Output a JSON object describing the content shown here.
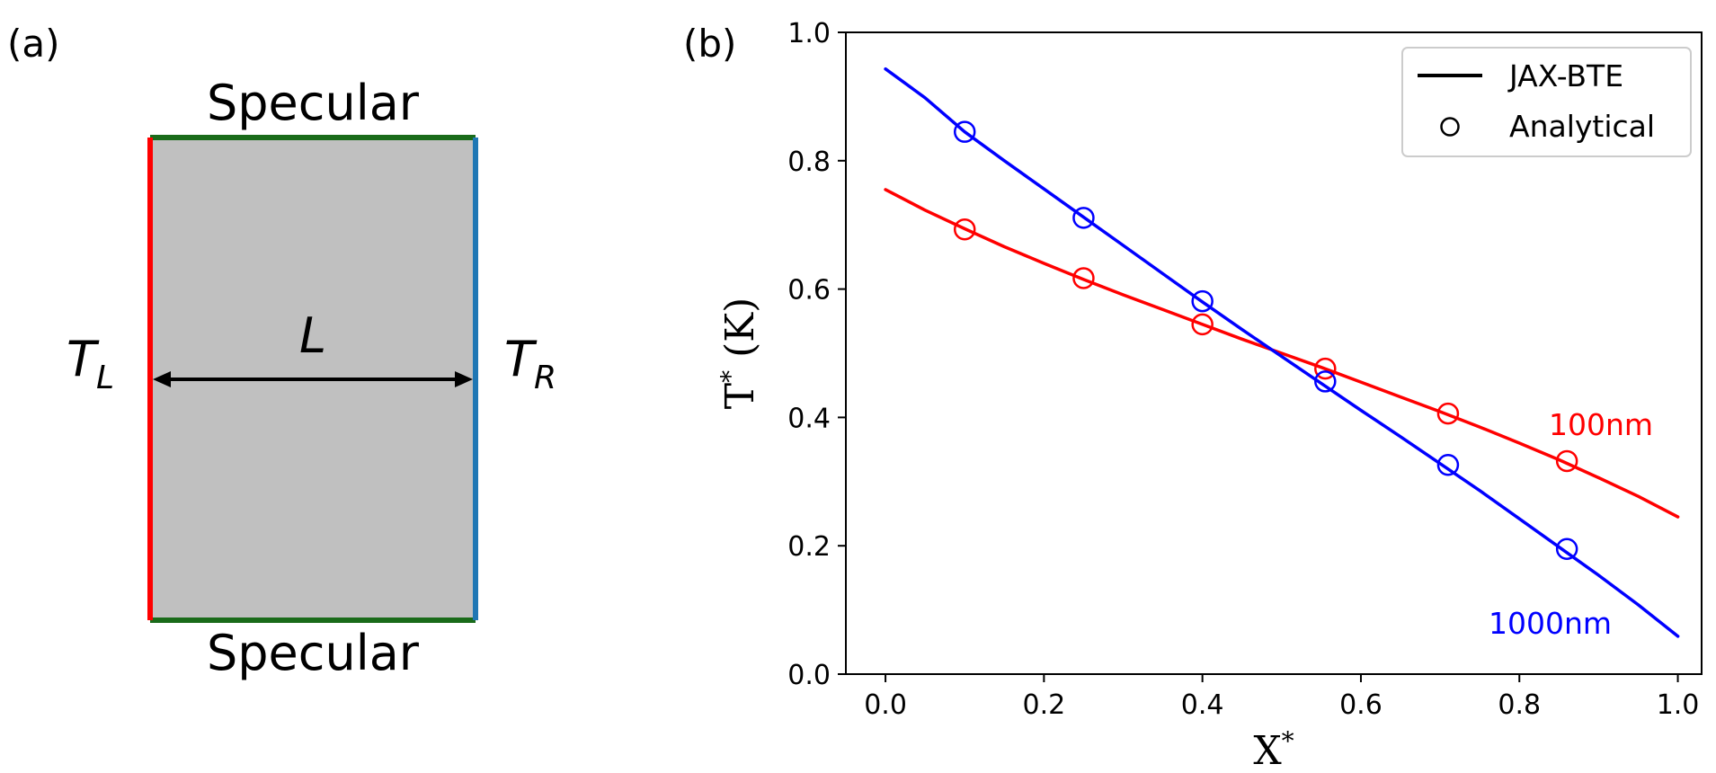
{
  "panel_a": {
    "label": "(a)",
    "top_boundary": "Specular",
    "bottom_boundary": "Specular",
    "left_temperature": {
      "main": "T",
      "sub": "L"
    },
    "right_temperature": {
      "main": "T",
      "sub": "R"
    },
    "length_label": "L",
    "colors": {
      "fill": "#c0c0c0",
      "left": "#ff0000",
      "right": "#1f77b4",
      "specular": "#1a6b1a",
      "arrow": "#000000"
    }
  },
  "panel_b": {
    "label": "(b)",
    "xlabel": {
      "main": "X",
      "sup": "*"
    },
    "ylabel": {
      "main": "T",
      "sup": "*",
      "rest": " (K)"
    },
    "legend": {
      "line_label": "JAX-BTE",
      "marker_label": "Analytical"
    },
    "annotations": {
      "red": "100nm",
      "blue": "1000nm"
    }
  },
  "chart_data": {
    "type": "line",
    "xlim": [
      -0.05,
      1.03
    ],
    "ylim": [
      0.0,
      1.0
    ],
    "xticks": [
      "0.0",
      "0.2",
      "0.4",
      "0.6",
      "0.8",
      "1.0"
    ],
    "yticks": [
      "0.0",
      "0.2",
      "0.4",
      "0.6",
      "0.8",
      "1.0"
    ],
    "grid": false,
    "legend_position": "top-right",
    "series": [
      {
        "name": "100nm",
        "color": "#ff0000",
        "line": {
          "x": [
            0.0,
            0.05,
            0.1,
            0.15,
            0.2,
            0.25,
            0.3,
            0.35,
            0.4,
            0.45,
            0.5,
            0.55,
            0.6,
            0.65,
            0.7,
            0.75,
            0.8,
            0.85,
            0.9,
            0.95,
            1.0
          ],
          "y": [
            0.755,
            0.723,
            0.694,
            0.666,
            0.64,
            0.615,
            0.591,
            0.568,
            0.545,
            0.522,
            0.5,
            0.478,
            0.455,
            0.432,
            0.409,
            0.385,
            0.36,
            0.334,
            0.306,
            0.277,
            0.245
          ]
        },
        "markers": {
          "x": [
            0.1,
            0.25,
            0.4,
            0.555,
            0.71,
            0.86
          ],
          "y": [
            0.693,
            0.617,
            0.545,
            0.476,
            0.406,
            0.332
          ]
        }
      },
      {
        "name": "1000nm",
        "color": "#0000ff",
        "line": {
          "x": [
            0.0,
            0.05,
            0.1,
            0.15,
            0.2,
            0.25,
            0.3,
            0.35,
            0.4,
            0.45,
            0.5,
            0.55,
            0.6,
            0.65,
            0.7,
            0.75,
            0.8,
            0.85,
            0.9,
            0.95,
            1.0
          ],
          "y": [
            0.943,
            0.898,
            0.845,
            0.8,
            0.756,
            0.712,
            0.668,
            0.624,
            0.58,
            0.537,
            0.495,
            0.453,
            0.411,
            0.37,
            0.328,
            0.286,
            0.242,
            0.198,
            0.154,
            0.108,
            0.059
          ]
        },
        "markers": {
          "x": [
            0.1,
            0.25,
            0.4,
            0.555,
            0.71,
            0.86
          ],
          "y": [
            0.845,
            0.711,
            0.581,
            0.456,
            0.326,
            0.195
          ]
        }
      }
    ]
  }
}
